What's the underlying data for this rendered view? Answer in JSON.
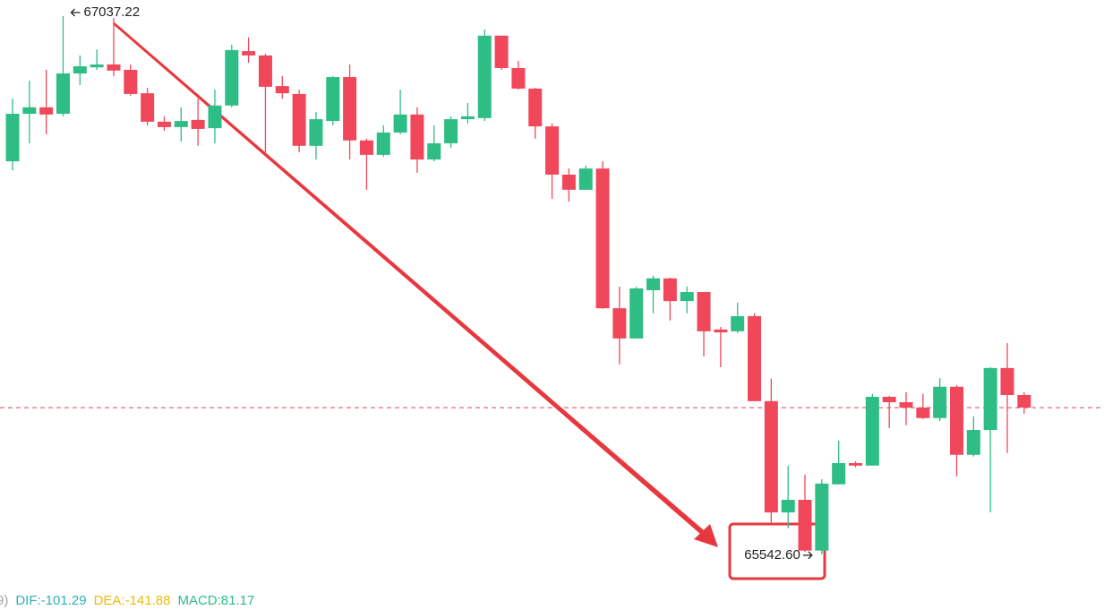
{
  "chart_data": {
    "type": "candlestick",
    "up_color": "#2ebd85",
    "down_color": "#f0485a",
    "ylim": [
      65388,
      67082
    ],
    "open": [
      66634,
      66766,
      66784,
      66766,
      66878,
      66895,
      66903,
      66888,
      66823,
      66744,
      66729,
      66749,
      66726,
      66789,
      66940,
      66928,
      66843,
      66821,
      66677,
      66746,
      66868,
      66692,
      66652,
      66714,
      66764,
      66639,
      66684,
      66751,
      66754,
      66983,
      66893,
      66836,
      66731,
      66597,
      66555,
      66614,
      66226,
      66142,
      66276,
      66309,
      66246,
      66271,
      66167,
      66162,
      66204,
      65968,
      65659,
      65694,
      65553,
      65737,
      65796,
      65789,
      65980,
      65965,
      65950,
      65921,
      66008,
      65819,
      65888,
      66060,
      65985
    ],
    "high": [
      66808,
      66858,
      66888,
      67037.22,
      66928,
      66945,
      67032,
      66903,
      66838,
      66759,
      66784,
      66808,
      66833,
      66958,
      66978,
      66933,
      66871,
      66833,
      66771,
      66871,
      66903,
      66697,
      66734,
      66833,
      66784,
      66734,
      66759,
      66796,
      67000,
      66983,
      66913,
      66838,
      66739,
      66614,
      66622,
      66634,
      66286,
      66286,
      66316,
      66311,
      66286,
      66271,
      66174,
      66241,
      66212,
      66030,
      65789,
      65764,
      65751,
      65858,
      65801,
      65988,
      65983,
      65993,
      65988,
      66032,
      66013,
      65926,
      66062,
      66129,
      65993
    ],
    "low": [
      66609,
      66684,
      66709,
      66759,
      66846,
      66888,
      66871,
      66816,
      66734,
      66719,
      66689,
      66677,
      66684,
      66784,
      66908,
      66654,
      66808,
      66659,
      66639,
      66734,
      66639,
      66555,
      66647,
      66709,
      66602,
      66634,
      66672,
      66739,
      66746,
      66888,
      66833,
      66697,
      66530,
      66522,
      66555,
      66224,
      66070,
      66142,
      66212,
      66192,
      66212,
      66092,
      66062,
      66157,
      65968,
      65627,
      65615,
      65549,
      65542.6,
      65737,
      65784,
      65789,
      65893,
      65901,
      65918,
      65913,
      65759,
      65814,
      65659,
      65824,
      65933
    ],
    "close": [
      66766,
      66784,
      66764,
      66878,
      66898,
      66903,
      66886,
      66821,
      66744,
      66729,
      66746,
      66724,
      66789,
      66943,
      66928,
      66841,
      66823,
      66677,
      66751,
      66868,
      66692,
      66652,
      66714,
      66764,
      66639,
      66684,
      66751,
      66759,
      66983,
      66893,
      66836,
      66731,
      66597,
      66555,
      66614,
      66226,
      66142,
      66281,
      66309,
      66246,
      66271,
      66162,
      66159,
      66204,
      65968,
      65659,
      65694,
      65553,
      65739,
      65796,
      65789,
      65980,
      65965,
      65950,
      65921,
      66008,
      65819,
      65888,
      66060,
      65985,
      65950
    ],
    "extremes": [
      {
        "value": 67037.22,
        "label": "67037.22"
      },
      {
        "value": 65542.6,
        "label": "65542.60"
      }
    ],
    "price_line_color": "#e0404e",
    "indicators": [
      {
        "label": "9)",
        "color": "#9aa0a6"
      },
      {
        "label": "DIF:-101.29",
        "color": "#2bb3b6"
      },
      {
        "label": "DEA:-141.88",
        "color": "#f0b90b"
      },
      {
        "label": "MACD:81.17",
        "color": "#2ebd85"
      }
    ]
  }
}
